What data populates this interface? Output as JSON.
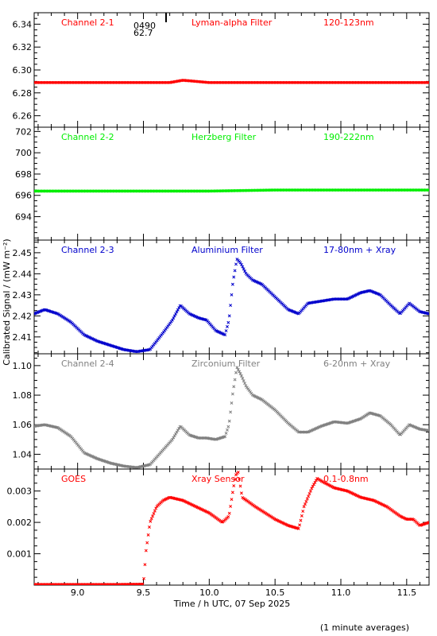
{
  "figure": {
    "xlabel": "Time / h UTC, 07 Sep 2025",
    "ylabel": "Calibrated Signal / (mW m⁻²)",
    "footer_note": "(1 minute averages)",
    "top_annotation": [
      "0490",
      "62.7"
    ]
  },
  "chart_data": [
    {
      "type": "scatter",
      "channel": "Channel 2-1",
      "filter": "Lyman-alpha Filter",
      "band": "120-123nm",
      "color": "#ff0000",
      "ylim": [
        6.25,
        6.35
      ],
      "yticks": [
        6.26,
        6.28,
        6.3,
        6.32,
        6.34
      ],
      "xlim": [
        8.67,
        11.67
      ],
      "x": [
        8.67,
        9.0,
        9.5,
        9.7,
        9.8,
        9.9,
        10.0,
        10.5,
        11.0,
        11.5,
        11.67
      ],
      "y": [
        6.289,
        6.289,
        6.289,
        6.289,
        6.291,
        6.29,
        6.289,
        6.289,
        6.289,
        6.289,
        6.289
      ]
    },
    {
      "type": "scatter",
      "channel": "Channel 2-2",
      "filter": "Herzberg Filter",
      "band": "190-222nm",
      "color": "#00ee00",
      "ylim": [
        691.8,
        702.4
      ],
      "yticks": [
        694,
        696,
        698,
        700,
        702
      ],
      "xlim": [
        8.67,
        11.67
      ],
      "x": [
        8.67,
        9.0,
        9.5,
        10.0,
        10.5,
        11.0,
        11.5,
        11.67
      ],
      "y": [
        696.4,
        696.4,
        696.4,
        696.4,
        696.5,
        696.5,
        696.5,
        696.5
      ]
    },
    {
      "type": "scatter",
      "channel": "Channel 2-3",
      "filter": "Aluminium Filter",
      "band": "17-80nm + Xray",
      "color": "#0000cc",
      "ylim": [
        2.402,
        2.456
      ],
      "yticks": [
        2.41,
        2.42,
        2.43,
        2.44,
        2.45
      ],
      "xlim": [
        8.67,
        11.67
      ],
      "x": [
        8.67,
        8.75,
        8.85,
        8.95,
        9.05,
        9.15,
        9.25,
        9.35,
        9.45,
        9.55,
        9.65,
        9.72,
        9.78,
        9.85,
        9.92,
        9.98,
        10.05,
        10.12,
        10.15,
        10.18,
        10.21,
        10.24,
        10.28,
        10.33,
        10.4,
        10.5,
        10.6,
        10.68,
        10.75,
        10.85,
        10.95,
        11.05,
        11.15,
        11.22,
        11.3,
        11.38,
        11.45,
        11.52,
        11.6,
        11.67
      ],
      "y": [
        2.421,
        2.423,
        2.421,
        2.417,
        2.411,
        2.408,
        2.406,
        2.404,
        2.403,
        2.404,
        2.412,
        2.418,
        2.425,
        2.421,
        2.419,
        2.418,
        2.413,
        2.411,
        2.418,
        2.436,
        2.447,
        2.445,
        2.44,
        2.437,
        2.435,
        2.429,
        2.423,
        2.421,
        2.426,
        2.427,
        2.428,
        2.428,
        2.431,
        2.432,
        2.43,
        2.425,
        2.421,
        2.426,
        2.422,
        2.421
      ]
    },
    {
      "type": "scatter",
      "channel": "Channel 2-4",
      "filter": "Zirconium Filter",
      "band": "6-20nm + Xray",
      "color": "#808080",
      "ylim": [
        1.03,
        1.108
      ],
      "yticks": [
        1.04,
        1.06,
        1.08,
        1.1
      ],
      "xlim": [
        8.67,
        11.67
      ],
      "x": [
        8.67,
        8.75,
        8.85,
        8.95,
        9.05,
        9.15,
        9.25,
        9.35,
        9.45,
        9.55,
        9.65,
        9.72,
        9.78,
        9.85,
        9.92,
        9.98,
        10.05,
        10.12,
        10.15,
        10.18,
        10.21,
        10.24,
        10.28,
        10.33,
        10.4,
        10.5,
        10.6,
        10.68,
        10.75,
        10.85,
        10.95,
        11.05,
        11.15,
        11.22,
        11.3,
        11.38,
        11.45,
        11.52,
        11.6,
        11.67
      ],
      "y": [
        1.059,
        1.06,
        1.058,
        1.052,
        1.041,
        1.037,
        1.034,
        1.032,
        1.031,
        1.033,
        1.043,
        1.05,
        1.059,
        1.053,
        1.051,
        1.051,
        1.05,
        1.052,
        1.06,
        1.082,
        1.099,
        1.094,
        1.086,
        1.08,
        1.077,
        1.07,
        1.061,
        1.055,
        1.055,
        1.059,
        1.062,
        1.061,
        1.064,
        1.068,
        1.066,
        1.06,
        1.053,
        1.06,
        1.057,
        1.056
      ]
    },
    {
      "type": "scatter",
      "channel": "GOES",
      "filter": "Xray Sensor",
      "band": "0.1-0.8nm",
      "color": "#ff0000",
      "ylim": [
        0.0,
        0.0037
      ],
      "yticks": [
        0.001,
        0.002,
        0.003
      ],
      "xlim": [
        8.67,
        11.67
      ],
      "x": [
        8.67,
        9.0,
        9.3,
        9.5,
        9.52,
        9.55,
        9.6,
        9.65,
        9.7,
        9.8,
        9.9,
        10.0,
        10.1,
        10.15,
        10.18,
        10.2,
        10.22,
        10.25,
        10.35,
        10.5,
        10.6,
        10.68,
        10.72,
        10.78,
        10.82,
        10.86,
        10.95,
        11.05,
        11.15,
        11.25,
        11.35,
        11.45,
        11.5,
        11.55,
        11.6,
        11.67
      ],
      "y": [
        2e-05,
        2e-05,
        2e-05,
        3e-05,
        0.0011,
        0.002,
        0.0025,
        0.0027,
        0.0028,
        0.0027,
        0.0025,
        0.0023,
        0.002,
        0.0022,
        0.003,
        0.0035,
        0.0036,
        0.0028,
        0.0025,
        0.0021,
        0.0019,
        0.0018,
        0.0025,
        0.0031,
        0.0034,
        0.0033,
        0.0031,
        0.003,
        0.0028,
        0.0027,
        0.0025,
        0.0022,
        0.0021,
        0.0021,
        0.0019,
        0.002
      ]
    }
  ],
  "x_axis": {
    "ticks": [
      9.0,
      9.5,
      10.0,
      10.5,
      11.0,
      11.5
    ],
    "tick_labels": [
      "9.0",
      "9.5",
      "10.0",
      "10.5",
      "11.0",
      "11.5"
    ],
    "minor_step": 0.1
  }
}
